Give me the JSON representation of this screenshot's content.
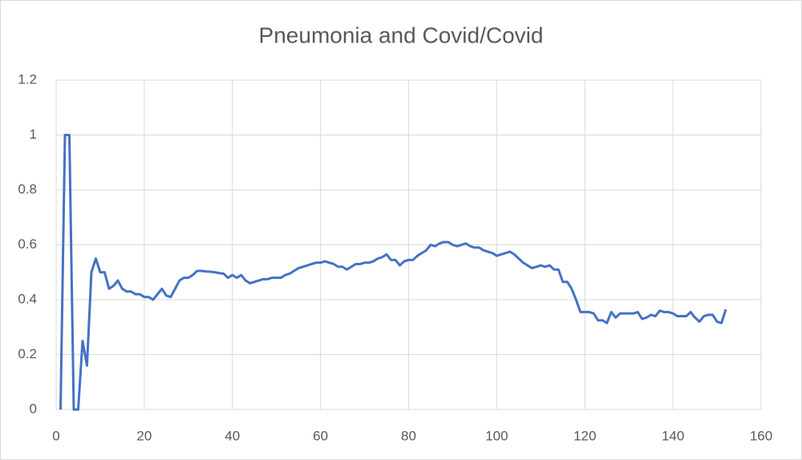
{
  "chart_data": {
    "type": "line",
    "title": "Pneumonia and Covid/Covid",
    "x": [
      1,
      2,
      3,
      4,
      5,
      6,
      7,
      8,
      9,
      10,
      11,
      12,
      13,
      14,
      15,
      16,
      17,
      18,
      19,
      20,
      21,
      22,
      23,
      24,
      25,
      26,
      27,
      28,
      29,
      30,
      31,
      32,
      33,
      34,
      35,
      36,
      37,
      38,
      39,
      40,
      41,
      42,
      43,
      44,
      45,
      46,
      47,
      48,
      49,
      50,
      51,
      52,
      53,
      54,
      55,
      56,
      57,
      58,
      59,
      60,
      61,
      62,
      63,
      64,
      65,
      66,
      67,
      68,
      69,
      70,
      71,
      72,
      73,
      74,
      75,
      76,
      77,
      78,
      79,
      80,
      81,
      82,
      83,
      84,
      85,
      86,
      87,
      88,
      89,
      90,
      91,
      92,
      93,
      94,
      95,
      96,
      97,
      98,
      99,
      100,
      101,
      102,
      103,
      104,
      105,
      106,
      107,
      108,
      109,
      110,
      111,
      112,
      113,
      114,
      115,
      116,
      117,
      118,
      119,
      120,
      121,
      122,
      123,
      124,
      125,
      126,
      127,
      128,
      129,
      130,
      131,
      132,
      133,
      134,
      135,
      136,
      137,
      138,
      139,
      140,
      141,
      142,
      143,
      144,
      145,
      146,
      147,
      148,
      149,
      150,
      151,
      152
    ],
    "series": [
      {
        "name": "Pneumonia and Covid/Covid",
        "color": "#4472c4",
        "values": [
          0,
          1,
          1,
          0,
          0,
          0.25,
          0.16,
          0.5,
          0.55,
          0.5,
          0.5,
          0.44,
          0.45,
          0.47,
          0.44,
          0.43,
          0.43,
          0.42,
          0.42,
          0.41,
          0.41,
          0.4,
          0.42,
          0.44,
          0.415,
          0.41,
          0.44,
          0.47,
          0.48,
          0.48,
          0.49,
          0.505,
          0.505,
          0.503,
          0.502,
          0.5,
          0.497,
          0.495,
          0.48,
          0.49,
          0.48,
          0.49,
          0.47,
          0.46,
          0.465,
          0.47,
          0.475,
          0.475,
          0.48,
          0.48,
          0.48,
          0.49,
          0.495,
          0.505,
          0.515,
          0.52,
          0.525,
          0.53,
          0.535,
          0.535,
          0.54,
          0.535,
          0.53,
          0.52,
          0.52,
          0.51,
          0.52,
          0.53,
          0.53,
          0.535,
          0.535,
          0.54,
          0.55,
          0.555,
          0.565,
          0.545,
          0.545,
          0.525,
          0.54,
          0.545,
          0.545,
          0.56,
          0.57,
          0.58,
          0.6,
          0.595,
          0.605,
          0.61,
          0.61,
          0.6,
          0.595,
          0.6,
          0.605,
          0.595,
          0.59,
          0.59,
          0.58,
          0.575,
          0.57,
          0.56,
          0.565,
          0.57,
          0.575,
          0.565,
          0.55,
          0.535,
          0.525,
          0.515,
          0.52,
          0.525,
          0.52,
          0.525,
          0.51,
          0.51,
          0.465,
          0.465,
          0.44,
          0.4,
          0.355,
          0.355,
          0.355,
          0.35,
          0.325,
          0.325,
          0.315,
          0.355,
          0.335,
          0.35,
          0.35,
          0.35,
          0.35,
          0.355,
          0.33,
          0.335,
          0.345,
          0.34,
          0.36,
          0.355,
          0.355,
          0.35,
          0.34,
          0.34,
          0.34,
          0.355,
          0.335,
          0.32,
          0.34,
          0.345,
          0.345,
          0.32,
          0.315,
          0.365
        ]
      }
    ],
    "xlim": [
      0,
      160
    ],
    "xticks": [
      0,
      20,
      40,
      60,
      80,
      100,
      120,
      140,
      160
    ],
    "ylim": [
      0,
      1.2
    ],
    "yticks": [
      0,
      0.2,
      0.4,
      0.6,
      0.8,
      1,
      1.2
    ],
    "grid": true
  }
}
